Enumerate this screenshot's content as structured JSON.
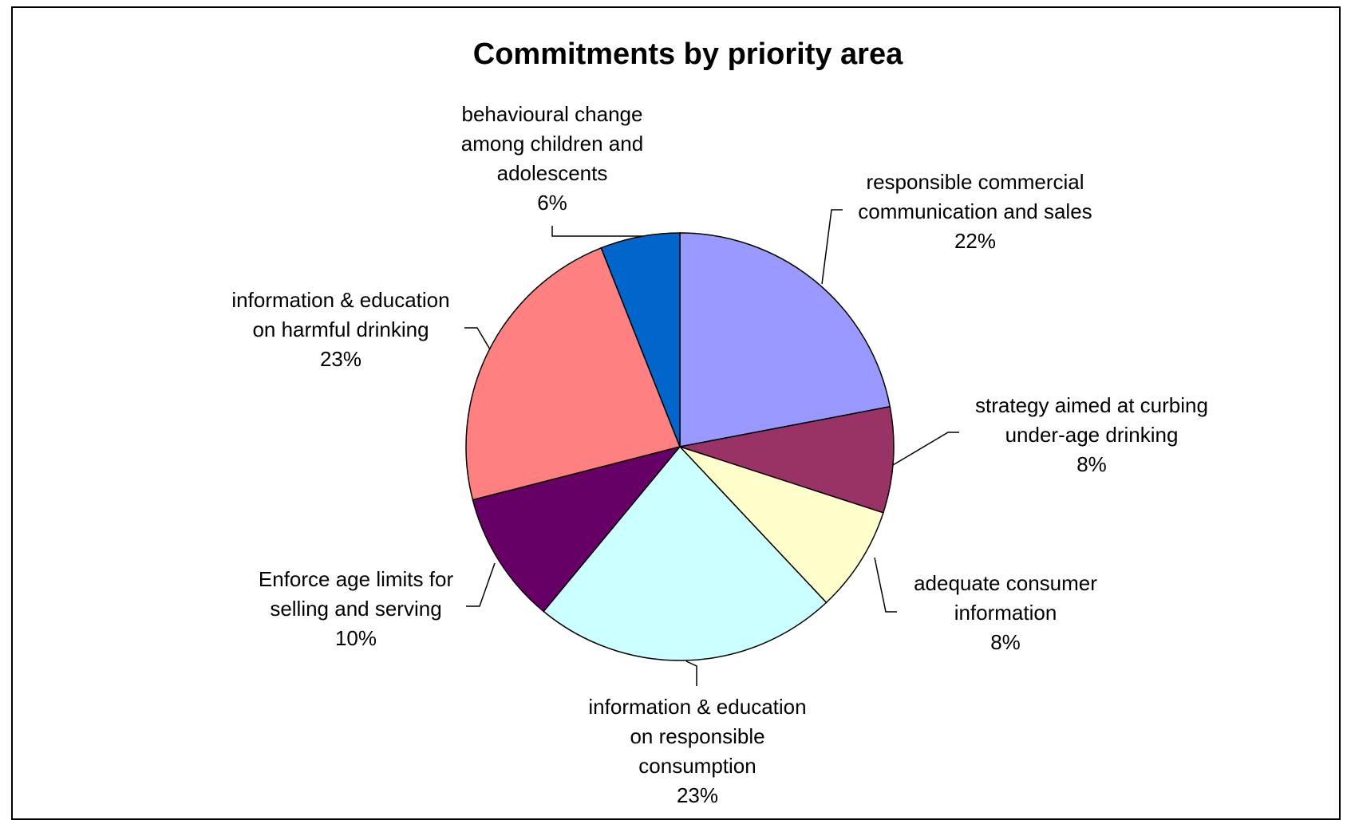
{
  "chart_data": {
    "type": "pie",
    "title": "Commitments by priority area",
    "slices": [
      {
        "label": [
          "responsible commercial",
          "communication and sales"
        ],
        "value": 22,
        "value_label": "22%",
        "color": "#9999ff"
      },
      {
        "label": [
          "strategy aimed at curbing",
          "under-age drinking"
        ],
        "value": 8,
        "value_label": "8%",
        "color": "#993366"
      },
      {
        "label": [
          "adequate consumer",
          "information"
        ],
        "value": 8,
        "value_label": "8%",
        "color": "#ffffcc"
      },
      {
        "label": [
          "information & education",
          "on responsible",
          "consumption"
        ],
        "value": 23,
        "value_label": "23%",
        "color": "#ccffff"
      },
      {
        "label": [
          "Enforce age limits for",
          "selling and serving"
        ],
        "value": 10,
        "value_label": "10%",
        "color": "#660066"
      },
      {
        "label": [
          "information & education",
          "on harmful drinking"
        ],
        "value": 23,
        "value_label": "23%",
        "color": "#ff8080"
      },
      {
        "label": [
          "behavioural change",
          "among children and",
          "adolescents"
        ],
        "value": 6,
        "value_label": "6%",
        "color": "#0066cc"
      }
    ]
  }
}
